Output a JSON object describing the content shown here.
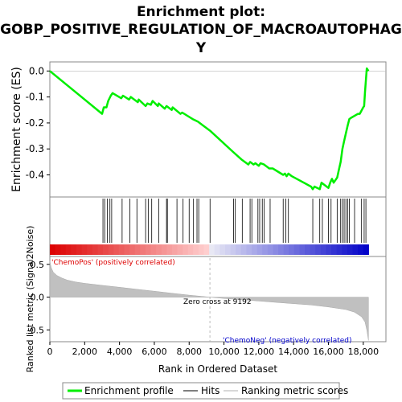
{
  "chart_data": {
    "type": "line",
    "title_lines": [
      "Enrichment plot:",
      "GOBP_POSITIVE_REGULATION_OF_MACROAUTOPHAG",
      "Y"
    ],
    "top_panel": {
      "ylabel": "Enrichment score (ES)",
      "ylim": [
        -0.485,
        0.035
      ],
      "yticks": [
        0.0,
        -0.1,
        -0.2,
        -0.3,
        -0.4
      ],
      "ytick_labels": [
        "0.0",
        "-0.1",
        "-0.2",
        "-0.3",
        "-0.4"
      ],
      "series": [
        {
          "color": "#00ee00",
          "x": [
            0,
            3000,
            3100,
            3250,
            3350,
            3500,
            3600,
            4100,
            4200,
            4550,
            4650,
            5050,
            5100,
            5500,
            5600,
            5800,
            5900,
            6200,
            6250,
            6600,
            6700,
            7000,
            7050,
            7500,
            7600,
            8200,
            8500,
            9200,
            10500,
            11000,
            11400,
            11500,
            11700,
            11800,
            12000,
            12100,
            12300,
            12600,
            12800,
            13400,
            13500,
            13600,
            13700,
            13900,
            15000,
            15100,
            15200,
            15500,
            15600,
            16000,
            16100,
            16200,
            16300,
            16500,
            16600,
            16700,
            16800,
            16900,
            17000,
            17100,
            17200,
            17300,
            17700,
            17800,
            18000,
            18050,
            18100,
            18200,
            18300
          ],
          "y": [
            0.0,
            -0.165,
            -0.14,
            -0.14,
            -0.115,
            -0.095,
            -0.085,
            -0.105,
            -0.095,
            -0.11,
            -0.1,
            -0.12,
            -0.11,
            -0.135,
            -0.125,
            -0.13,
            -0.115,
            -0.135,
            -0.125,
            -0.145,
            -0.135,
            -0.15,
            -0.14,
            -0.165,
            -0.16,
            -0.185,
            -0.195,
            -0.23,
            -0.31,
            -0.34,
            -0.36,
            -0.35,
            -0.36,
            -0.355,
            -0.365,
            -0.355,
            -0.36,
            -0.375,
            -0.375,
            -0.4,
            -0.395,
            -0.405,
            -0.395,
            -0.405,
            -0.445,
            -0.455,
            -0.445,
            -0.455,
            -0.43,
            -0.45,
            -0.43,
            -0.415,
            -0.43,
            -0.41,
            -0.38,
            -0.35,
            -0.3,
            -0.27,
            -0.24,
            -0.21,
            -0.185,
            -0.18,
            -0.165,
            -0.165,
            -0.14,
            -0.135,
            -0.08,
            0.01,
            0.0
          ]
        }
      ]
    },
    "hits": [
      3050,
      3150,
      3300,
      3450,
      3550,
      4150,
      4600,
      5000,
      5500,
      5650,
      5850,
      6250,
      6700,
      6750,
      7300,
      7650,
      8000,
      8250,
      8450,
      8550,
      9200,
      10550,
      10650,
      11050,
      11500,
      11600,
      11950,
      12050,
      12200,
      12300,
      12650,
      13400,
      13550,
      13700,
      15100,
      15500,
      15650,
      16000,
      16150,
      16500,
      16700,
      16800,
      16900,
      17000,
      17100,
      17200,
      17500,
      17900,
      18050,
      18150
    ],
    "legend_entries": [
      "Enrichment profile",
      "Hits",
      "Ranking metric scores"
    ],
    "ranking_panel": {
      "ylabel": "Ranked list metric (Signal2Noise)",
      "ylim": [
        -0.68,
        0.62
      ],
      "yticks": [
        0.5,
        0.0,
        -0.5
      ],
      "ytick_labels": [
        "0.5",
        "0.0",
        "-0.5"
      ],
      "metric_x": [
        0,
        80,
        200,
        400,
        700,
        1000,
        1500,
        2000,
        3000,
        4000,
        5000,
        6000,
        7000,
        8000,
        9192,
        10000,
        11000,
        12000,
        13000,
        14000,
        15000,
        16000,
        17000,
        17500,
        17900,
        18100,
        18200,
        18300
      ],
      "metric_y": [
        0.55,
        0.45,
        0.38,
        0.33,
        0.29,
        0.26,
        0.23,
        0.21,
        0.18,
        0.15,
        0.12,
        0.09,
        0.06,
        0.03,
        0.0,
        -0.02,
        -0.04,
        -0.06,
        -0.08,
        -0.1,
        -0.12,
        -0.15,
        -0.19,
        -0.23,
        -0.3,
        -0.38,
        -0.5,
        -0.66
      ],
      "zero_cross_label": "Zero cross at 9192",
      "zero_cross_x": 9192,
      "pos_label": "'ChemoPos' (positively correlated)",
      "neg_label": "'ChemoNeg' (negatively correlated)",
      "pos_color": "#dd0000",
      "neg_color": "#0000cc"
    },
    "x_axis": {
      "xlabel": "Rank in Ordered Dataset",
      "xlim": [
        0,
        19300
      ],
      "xticks": [
        0,
        2000,
        4000,
        6000,
        8000,
        10000,
        12000,
        14000,
        16000,
        18000
      ],
      "xtick_labels": [
        "0",
        "2,000",
        "4,000",
        "6,000",
        "8,000",
        "10,000",
        "12,000",
        "14,000",
        "16,000",
        "18,000"
      ]
    }
  }
}
